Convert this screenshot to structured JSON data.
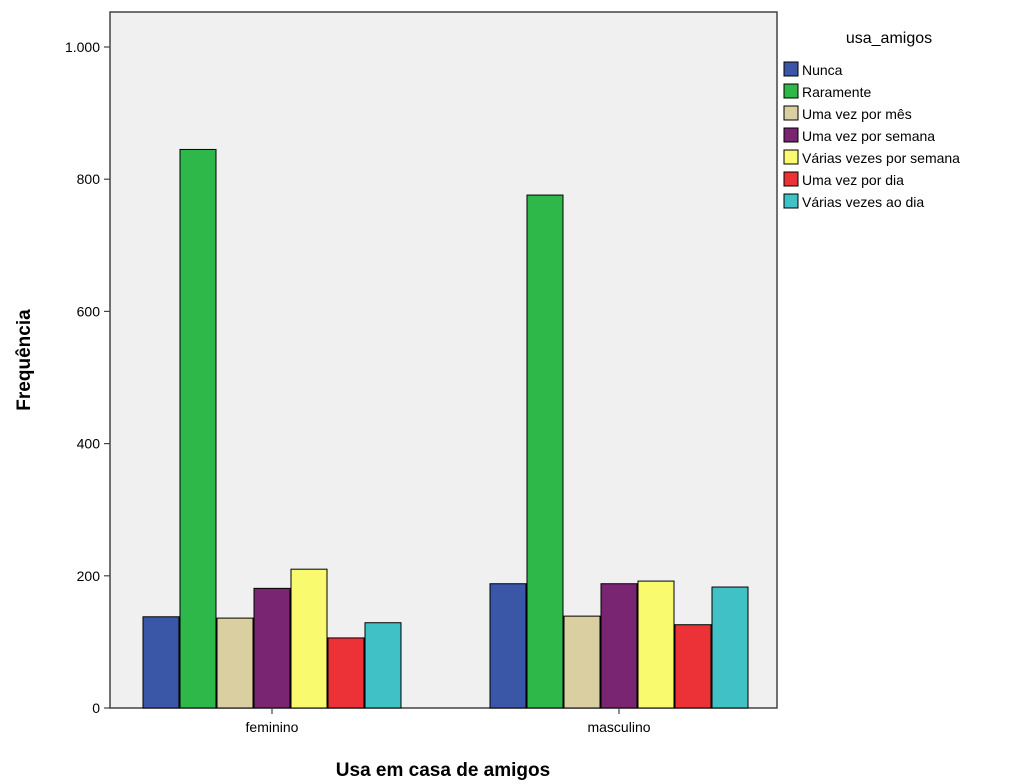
{
  "chart_data": {
    "type": "bar",
    "categories": [
      "feminino",
      "masculino"
    ],
    "xlabel": "Usa em casa de amigos",
    "ylabel": "Frequência",
    "ylim": [
      0,
      1000
    ],
    "yticks": [
      0,
      200,
      400,
      600,
      800,
      1000
    ],
    "ytick_labels": [
      "0",
      "200",
      "400",
      "600",
      "800",
      "1.000"
    ],
    "grid": false,
    "legend_title": "usa_amigos",
    "legend_position": "right",
    "series": [
      {
        "name": "Nunca",
        "color": "#3a56a6",
        "values": [
          138,
          188
        ]
      },
      {
        "name": "Raramente",
        "color": "#2fb84a",
        "values": [
          845,
          776
        ]
      },
      {
        "name": "Uma vez por mês",
        "color": "#d9cfa0",
        "values": [
          136,
          139
        ]
      },
      {
        "name": "Uma vez por semana",
        "color": "#7a2572",
        "values": [
          181,
          188
        ]
      },
      {
        "name": "Várias vezes por semana",
        "color": "#fafa6e",
        "values": [
          210,
          192
        ]
      },
      {
        "name": "Uma vez por dia",
        "color": "#ec3237",
        "values": [
          106,
          126
        ]
      },
      {
        "name": "Várias vezes ao dia",
        "color": "#3fc1c6",
        "values": [
          129,
          183
        ]
      }
    ]
  }
}
